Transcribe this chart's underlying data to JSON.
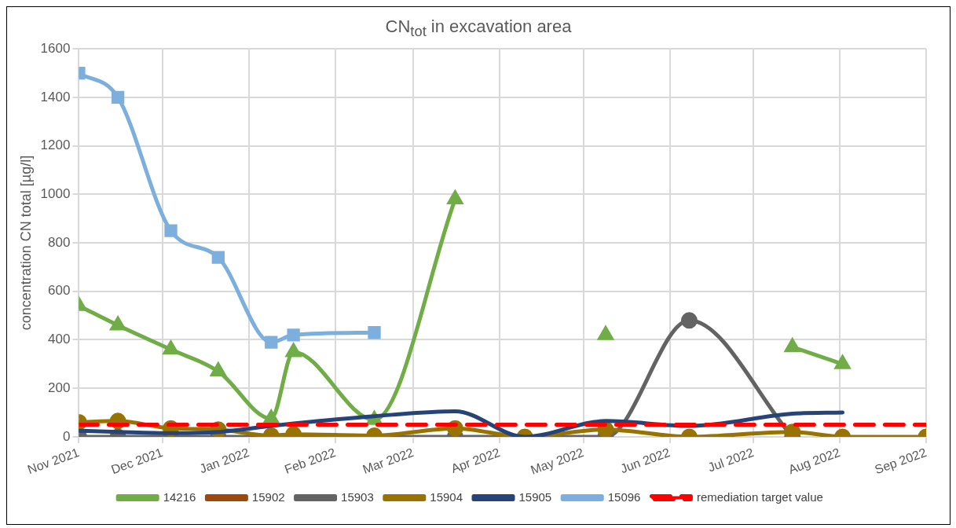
{
  "chart_data": {
    "type": "line",
    "title": "CN$_{tot}$ in excavation area",
    "ylabel": "concentration CN total [µg/l]",
    "xlim": [
      "2021-11-01",
      "2022-09-01"
    ],
    "xticks": [
      {
        "value": "2021-11-01",
        "label": "Nov 2021"
      },
      {
        "value": "2021-12-01",
        "label": "Dec 2021"
      },
      {
        "value": "2022-01-01",
        "label": "Jan 2022"
      },
      {
        "value": "2022-02-01",
        "label": "Feb 2022"
      },
      {
        "value": "2022-03-01",
        "label": "Mar 2022"
      },
      {
        "value": "2022-04-01",
        "label": "Apr 2022"
      },
      {
        "value": "2022-05-01",
        "label": "May 2022"
      },
      {
        "value": "2022-06-01",
        "label": "Jun 2022"
      },
      {
        "value": "2022-07-01",
        "label": "Jul 2022"
      },
      {
        "value": "2022-08-01",
        "label": "Aug 2022"
      },
      {
        "value": "2022-09-01",
        "label": "Sep 2022"
      }
    ],
    "ylim": [
      0,
      1600
    ],
    "yticks": [
      0,
      200,
      400,
      600,
      800,
      1000,
      1200,
      1400,
      1600
    ],
    "grid": true,
    "legend": "bottom",
    "series": [
      {
        "name": "14216",
        "color": "#70ad47",
        "marker": "triangle",
        "x": [
          "2021-11-01",
          "2021-11-15",
          "2021-12-04",
          "2021-12-21",
          "2022-01-09",
          "2022-01-17",
          "2022-02-15",
          "2022-03-16",
          "2022-04-10",
          "2022-05-09",
          "2022-06-08",
          "2022-07-15",
          "2022-08-02"
        ],
        "values": [
          540,
          460,
          360,
          270,
          75,
          350,
          70,
          980,
          null,
          420,
          null,
          370,
          300
        ]
      },
      {
        "name": "15902",
        "color": "#9e480e",
        "marker": "circle"
      },
      {
        "name": "15903",
        "color": "#636363",
        "marker": "circle",
        "x": [
          "2021-11-01",
          "2021-11-15",
          "2021-12-04",
          "2021-12-21",
          "2022-01-09",
          "2022-01-17",
          "2022-02-15",
          "2022-03-16",
          "2022-05-09",
          "2022-06-08",
          "2022-07-15"
        ],
        "values": [
          0,
          0,
          0,
          0,
          0,
          0,
          0,
          0,
          0,
          480,
          0
        ]
      },
      {
        "name": "15904",
        "color": "#997300",
        "marker": "circle",
        "x": [
          "2021-11-01",
          "2021-11-15",
          "2021-12-04",
          "2021-12-21",
          "2022-01-09",
          "2022-01-17",
          "2022-02-15",
          "2022-03-16",
          "2022-04-10",
          "2022-05-09",
          "2022-06-08",
          "2022-07-15",
          "2022-08-02",
          "2022-09-01"
        ],
        "values": [
          60,
          65,
          35,
          30,
          5,
          10,
          5,
          35,
          0,
          30,
          0,
          20,
          0,
          0
        ]
      },
      {
        "name": "15905",
        "color": "#264478",
        "marker": "none",
        "x": [
          "2021-11-01",
          "2021-11-15",
          "2021-12-04",
          "2021-12-21",
          "2022-01-09",
          "2022-01-17",
          "2022-02-15",
          "2022-03-16",
          "2022-04-10",
          "2022-05-09",
          "2022-06-08",
          "2022-07-15",
          "2022-08-02"
        ],
        "values": [
          25,
          20,
          15,
          20,
          45,
          55,
          85,
          105,
          0,
          65,
          45,
          95,
          100
        ]
      },
      {
        "name": "15096",
        "color": "#7cafdd",
        "marker": "square",
        "x": [
          "2021-11-01",
          "2021-11-15",
          "2021-12-04",
          "2021-12-21",
          "2022-01-09",
          "2022-01-17",
          "2022-02-15"
        ],
        "values": [
          1500,
          1400,
          850,
          740,
          390,
          420,
          430
        ]
      },
      {
        "name": "remediation target value",
        "color": "#ff0000",
        "marker": "none",
        "line_style": "dashed",
        "x": [
          "2021-11-01",
          "2022-09-01"
        ],
        "values": [
          50,
          50
        ]
      }
    ]
  }
}
